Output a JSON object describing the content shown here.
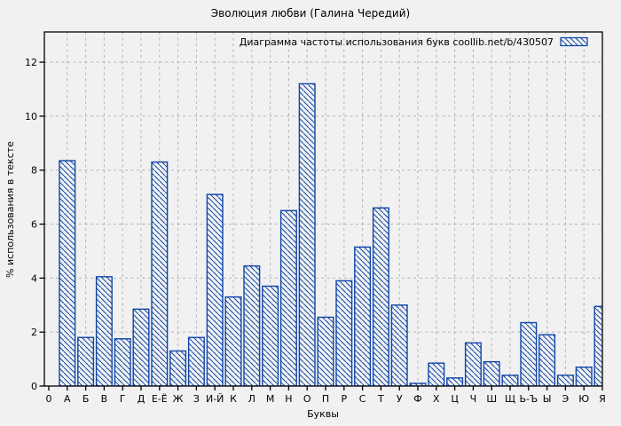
{
  "chart_data": {
    "type": "bar",
    "title": "Эволюция любви (Галина Чередий)",
    "legend": {
      "text": "Диаграмма частоты использования букв  coollib.net/b/430507",
      "position": "top-right",
      "swatch": "hatched-rect"
    },
    "xlabel": "Буквы",
    "ylabel": "% использования в тексте",
    "origin_tick_label": "0",
    "categories": [
      "А",
      "Б",
      "В",
      "Г",
      "Д",
      "Е-Ё",
      "Ж",
      "З",
      "И-Й",
      "К",
      "Л",
      "М",
      "Н",
      "О",
      "П",
      "Р",
      "С",
      "Т",
      "У",
      "Ф",
      "Х",
      "Ц",
      "Ч",
      "Ш",
      "Щ",
      "Ь-Ъ",
      "Ы",
      "Э",
      "Ю",
      "Я"
    ],
    "values": [
      8.35,
      1.8,
      4.05,
      1.75,
      2.85,
      8.3,
      1.3,
      1.8,
      7.1,
      3.3,
      4.45,
      3.7,
      6.5,
      11.2,
      2.55,
      3.9,
      5.15,
      6.6,
      3.0,
      0.1,
      0.85,
      0.3,
      1.6,
      0.9,
      0.4,
      2.35,
      1.9,
      0.4,
      0.7,
      2.95
    ],
    "yticks": [
      0,
      2,
      4,
      6,
      8,
      10,
      12
    ],
    "ylim": [
      0,
      13.12
    ],
    "grid": "dashed-both-axes",
    "bar_style": "diagonal-hatch-outline",
    "colors": {
      "bar": "#0e45a8",
      "grid": "#b3b3b3",
      "axis": "#000000",
      "text": "#000000",
      "background": "#f1f1f1"
    }
  }
}
